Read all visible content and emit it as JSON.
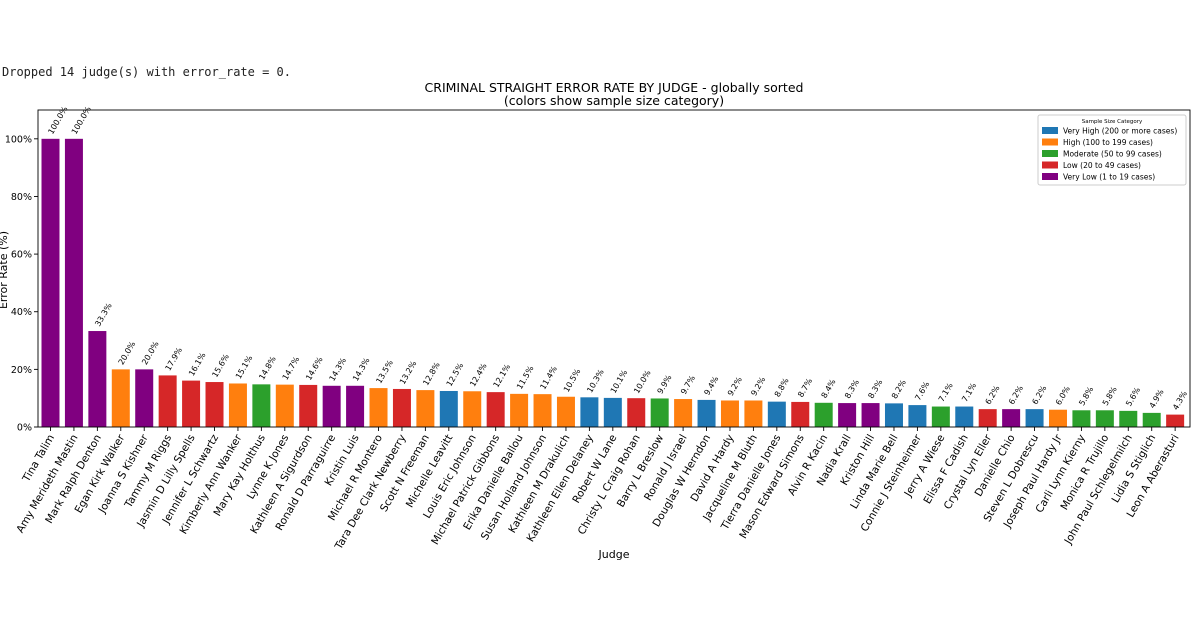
{
  "notice": "Dropped 14 judge(s) with error_rate = 0.",
  "chart_data": {
    "type": "bar",
    "title": "CRIMINAL STRAIGHT ERROR RATE BY JUDGE - globally sorted",
    "subtitle": "(colors show sample size category)",
    "xlabel": "Judge",
    "ylabel": "Error Rate (%)",
    "ylim": [
      0,
      110
    ],
    "yticks": [
      0,
      20,
      40,
      60,
      80,
      100
    ],
    "ytick_labels": [
      "0%",
      "20%",
      "40%",
      "60%",
      "80%",
      "100%"
    ],
    "grid": false,
    "legend_position": "top-right",
    "legend_title": "Sample Size Category",
    "legend": [
      {
        "key": "vh",
        "label": "Very High (200 or more cases)",
        "color": "#1f77b4"
      },
      {
        "key": "h",
        "label": "High (100 to 199 cases)",
        "color": "#ff7f0e"
      },
      {
        "key": "m",
        "label": "Moderate (50 to 99 cases)",
        "color": "#2ca02c"
      },
      {
        "key": "l",
        "label": "Low (20 to 49 cases)",
        "color": "#d62728"
      },
      {
        "key": "vl",
        "label": "Very Low (1 to 19 cases)",
        "color": "#800080"
      }
    ],
    "categories": [
      "Tina Talim",
      "Amy Merideth Mastin",
      "Mark Ralph Denton",
      "Egan Kirk Walker",
      "Joanna S Kishner",
      "Tammy M Riggs",
      "Jasmin D Lilly Spells",
      "Jennifer L Schwartz",
      "Kimberly Ann Wanker",
      "Mary Kay Holthus",
      "Lynne K Jones",
      "Kathleen A Sigurdson",
      "Ronald D Parraguirre",
      "Kristin Luis",
      "Michael R Montero",
      "Tara Dee Clark Newberry",
      "Scott N Freeman",
      "Michelle Leavitt",
      "Louis Eric Johnson",
      "Michael Patrick Gibbons",
      "Erika Danielle Ballou",
      "Susan Holland Johnson",
      "Kathleen M Drakulich",
      "Kathleen Ellen Delaney",
      "Robert W Lane",
      "Christy L Craig Rohan",
      "Barry L Breslow",
      "Ronald J Israel",
      "Douglas W Herndon",
      "David A Hardy",
      "Jacqueline M Bluth",
      "Tierra Danielle Jones",
      "Mason Edward Simons",
      "Alvin R Kacin",
      "Nadia Krall",
      "Kriston Hill",
      "Linda Marie Bell",
      "Connie J Steinheimer",
      "Jerry A Wiese",
      "Elissa F Cadish",
      "Crystal Lyn Eller",
      "Danielle Chio",
      "Steven L Dobrescu",
      "Joseph Paul Hardy Jr",
      "Carli Lynn Kierny",
      "Monica R Trujillo",
      "John Paul Schlegelmilch",
      "Lidia S Stiglich",
      "Leon A Aberasturi"
    ],
    "values": [
      100.0,
      100.0,
      33.3,
      20.0,
      20.0,
      17.9,
      16.1,
      15.6,
      15.1,
      14.8,
      14.7,
      14.6,
      14.3,
      14.3,
      13.5,
      13.2,
      12.8,
      12.5,
      12.4,
      12.1,
      11.5,
      11.4,
      10.5,
      10.3,
      10.1,
      10.0,
      9.9,
      9.7,
      9.4,
      9.2,
      9.2,
      8.8,
      8.7,
      8.4,
      8.3,
      8.3,
      8.2,
      7.6,
      7.1,
      7.1,
      6.2,
      6.2,
      6.2,
      6.0,
      5.8,
      5.8,
      5.6,
      4.9,
      4.3
    ],
    "value_labels": [
      "100.0%",
      "100.0%",
      "33.3%",
      "20.0%",
      "20.0%",
      "17.9%",
      "16.1%",
      "15.6%",
      "15.1%",
      "14.8%",
      "14.7%",
      "14.6%",
      "14.3%",
      "14.3%",
      "13.5%",
      "13.2%",
      "12.8%",
      "12.5%",
      "12.4%",
      "12.1%",
      "11.5%",
      "11.4%",
      "10.5%",
      "10.3%",
      "10.1%",
      "10.0%",
      "9.9%",
      "9.7%",
      "9.4%",
      "9.2%",
      "9.2%",
      "8.8%",
      "8.7%",
      "8.4%",
      "8.3%",
      "8.3%",
      "8.2%",
      "7.6%",
      "7.1%",
      "7.1%",
      "6.2%",
      "6.2%",
      "6.2%",
      "6.0%",
      "5.8%",
      "5.8%",
      "5.6%",
      "4.9%",
      "4.3%"
    ],
    "size_category": [
      "vl",
      "vl",
      "vl",
      "h",
      "vl",
      "l",
      "l",
      "l",
      "h",
      "m",
      "h",
      "l",
      "vl",
      "vl",
      "h",
      "l",
      "h",
      "vh",
      "h",
      "l",
      "h",
      "h",
      "h",
      "vh",
      "vh",
      "l",
      "m",
      "h",
      "vh",
      "h",
      "h",
      "vh",
      "l",
      "m",
      "vl",
      "vl",
      "vh",
      "vh",
      "m",
      "vh",
      "l",
      "vl",
      "vh",
      "h",
      "m",
      "m",
      "m",
      "m",
      "l"
    ]
  }
}
